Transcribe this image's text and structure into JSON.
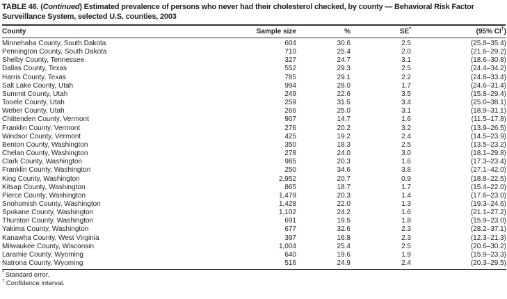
{
  "page": {
    "title": {
      "prefix": "TABLE 46. (",
      "continued": "Continued",
      "rest": ") Estimated prevalence of persons who never had their cholesterol checked, by county — Behavioral Risk Factor Surveillance System, selected U.S. counties, 2003"
    },
    "footnotes": [
      {
        "marker": "*",
        "text": "Standard error."
      },
      {
        "marker": "†",
        "text": "Confidence interval."
      }
    ]
  },
  "colors": {
    "text": "#1e1e1e",
    "rule": "#2e2e2e",
    "background": "#ffffff"
  },
  "table": {
    "headers": {
      "county": "County",
      "sample_size": "Sample size",
      "percent": "%",
      "se": "SE",
      "se_marker": "*",
      "ci_open": "(95% CI",
      "ci_marker": "†",
      "ci_close": ")"
    },
    "rows": [
      {
        "county": "Minnehaha County, South Dakota",
        "sample_size": "604",
        "percent": "30.6",
        "se": "2.5",
        "ci": "(25.8–35.4)"
      },
      {
        "county": "Pennington County, South Dakota",
        "sample_size": "710",
        "percent": "25.4",
        "se": "2.0",
        "ci": "(21.6–29.2)"
      },
      {
        "county": "Shelby County, Tennessee",
        "sample_size": "327",
        "percent": "24.7",
        "se": "3.1",
        "ci": "(18.6–30.8)"
      },
      {
        "county": "Dallas County, Texas",
        "sample_size": "552",
        "percent": "29.3",
        "se": "2.5",
        "ci": "(24.4–34.2)"
      },
      {
        "county": "Harris County, Texas",
        "sample_size": "785",
        "percent": "29.1",
        "se": "2.2",
        "ci": "(24.8–33.4)"
      },
      {
        "county": "Salt Lake County, Utah",
        "sample_size": "994",
        "percent": "28.0",
        "se": "1.7",
        "ci": "(24.6–31.4)"
      },
      {
        "county": "Summit County, Utah",
        "sample_size": "249",
        "percent": "22.6",
        "se": "3.5",
        "ci": "(15.8–29.4)"
      },
      {
        "county": "Tooele County, Utah",
        "sample_size": "259",
        "percent": "31.5",
        "se": "3.4",
        "ci": "(25.0–38.1)"
      },
      {
        "county": "Weber County, Utah",
        "sample_size": "266",
        "percent": "25.0",
        "se": "3.1",
        "ci": "(18.9–31.1)"
      },
      {
        "county": "Chittenden County, Vermont",
        "sample_size": "907",
        "percent": "14.7",
        "se": "1.6",
        "ci": "(11.5–17.8)"
      },
      {
        "county": "Franklin County, Vermont",
        "sample_size": "276",
        "percent": "20.2",
        "se": "3.2",
        "ci": "(13.9–26.5)"
      },
      {
        "county": "Windsor County, Vermont",
        "sample_size": "425",
        "percent": "19.2",
        "se": "2.4",
        "ci": "(14.5–23.9)"
      },
      {
        "county": "Benton County, Washington",
        "sample_size": "350",
        "percent": "18.3",
        "se": "2.5",
        "ci": "(13.5–23.2)"
      },
      {
        "county": "Chelan County, Washington",
        "sample_size": "278",
        "percent": "24.0",
        "se": "3.0",
        "ci": "(18.1–29.8)"
      },
      {
        "county": "Clark County, Washington",
        "sample_size": "985",
        "percent": "20.3",
        "se": "1.6",
        "ci": "(17.3–23.4)"
      },
      {
        "county": "Franklin County, Washington",
        "sample_size": "250",
        "percent": "34.6",
        "se": "3.8",
        "ci": "(27.1–42.0)"
      },
      {
        "county": "King County, Washington",
        "sample_size": "2,952",
        "percent": "20.7",
        "se": "0.9",
        "ci": "(18.8–22.5)"
      },
      {
        "county": "Kitsap County, Washington",
        "sample_size": "865",
        "percent": "18.7",
        "se": "1.7",
        "ci": "(15.4–22.0)"
      },
      {
        "county": "Pierce County, Washington",
        "sample_size": "1,479",
        "percent": "20.3",
        "se": "1.4",
        "ci": "(17.6–23.0)"
      },
      {
        "county": "Snohomish County, Washington",
        "sample_size": "1,428",
        "percent": "22.0",
        "se": "1.3",
        "ci": "(19.3–24.6)"
      },
      {
        "county": "Spokane County, Washington",
        "sample_size": "1,102",
        "percent": "24.2",
        "se": "1.6",
        "ci": "(21.1–27.2)"
      },
      {
        "county": "Thurston County, Washington",
        "sample_size": "691",
        "percent": "19.5",
        "se": "1.8",
        "ci": "(15.9–23.0)"
      },
      {
        "county": "Yakima County, Washington",
        "sample_size": "677",
        "percent": "32.6",
        "se": "2.3",
        "ci": "(28.2–37.1)"
      },
      {
        "county": "Kanawha County, West Virginia",
        "sample_size": "397",
        "percent": "16.8",
        "se": "2.3",
        "ci": "(12.3–21.3)"
      },
      {
        "county": "Milwaukee County, Wisconsin",
        "sample_size": "1,004",
        "percent": "25.4",
        "se": "2.5",
        "ci": "(20.6–30.2)"
      },
      {
        "county": "Laramie County, Wyoming",
        "sample_size": "640",
        "percent": "19.6",
        "se": "1.9",
        "ci": "(15.9–23.3)"
      },
      {
        "county": "Natrona County, Wyoming",
        "sample_size": "516",
        "percent": "24.9",
        "se": "2.4",
        "ci": "(20.3–29.5)"
      }
    ]
  }
}
